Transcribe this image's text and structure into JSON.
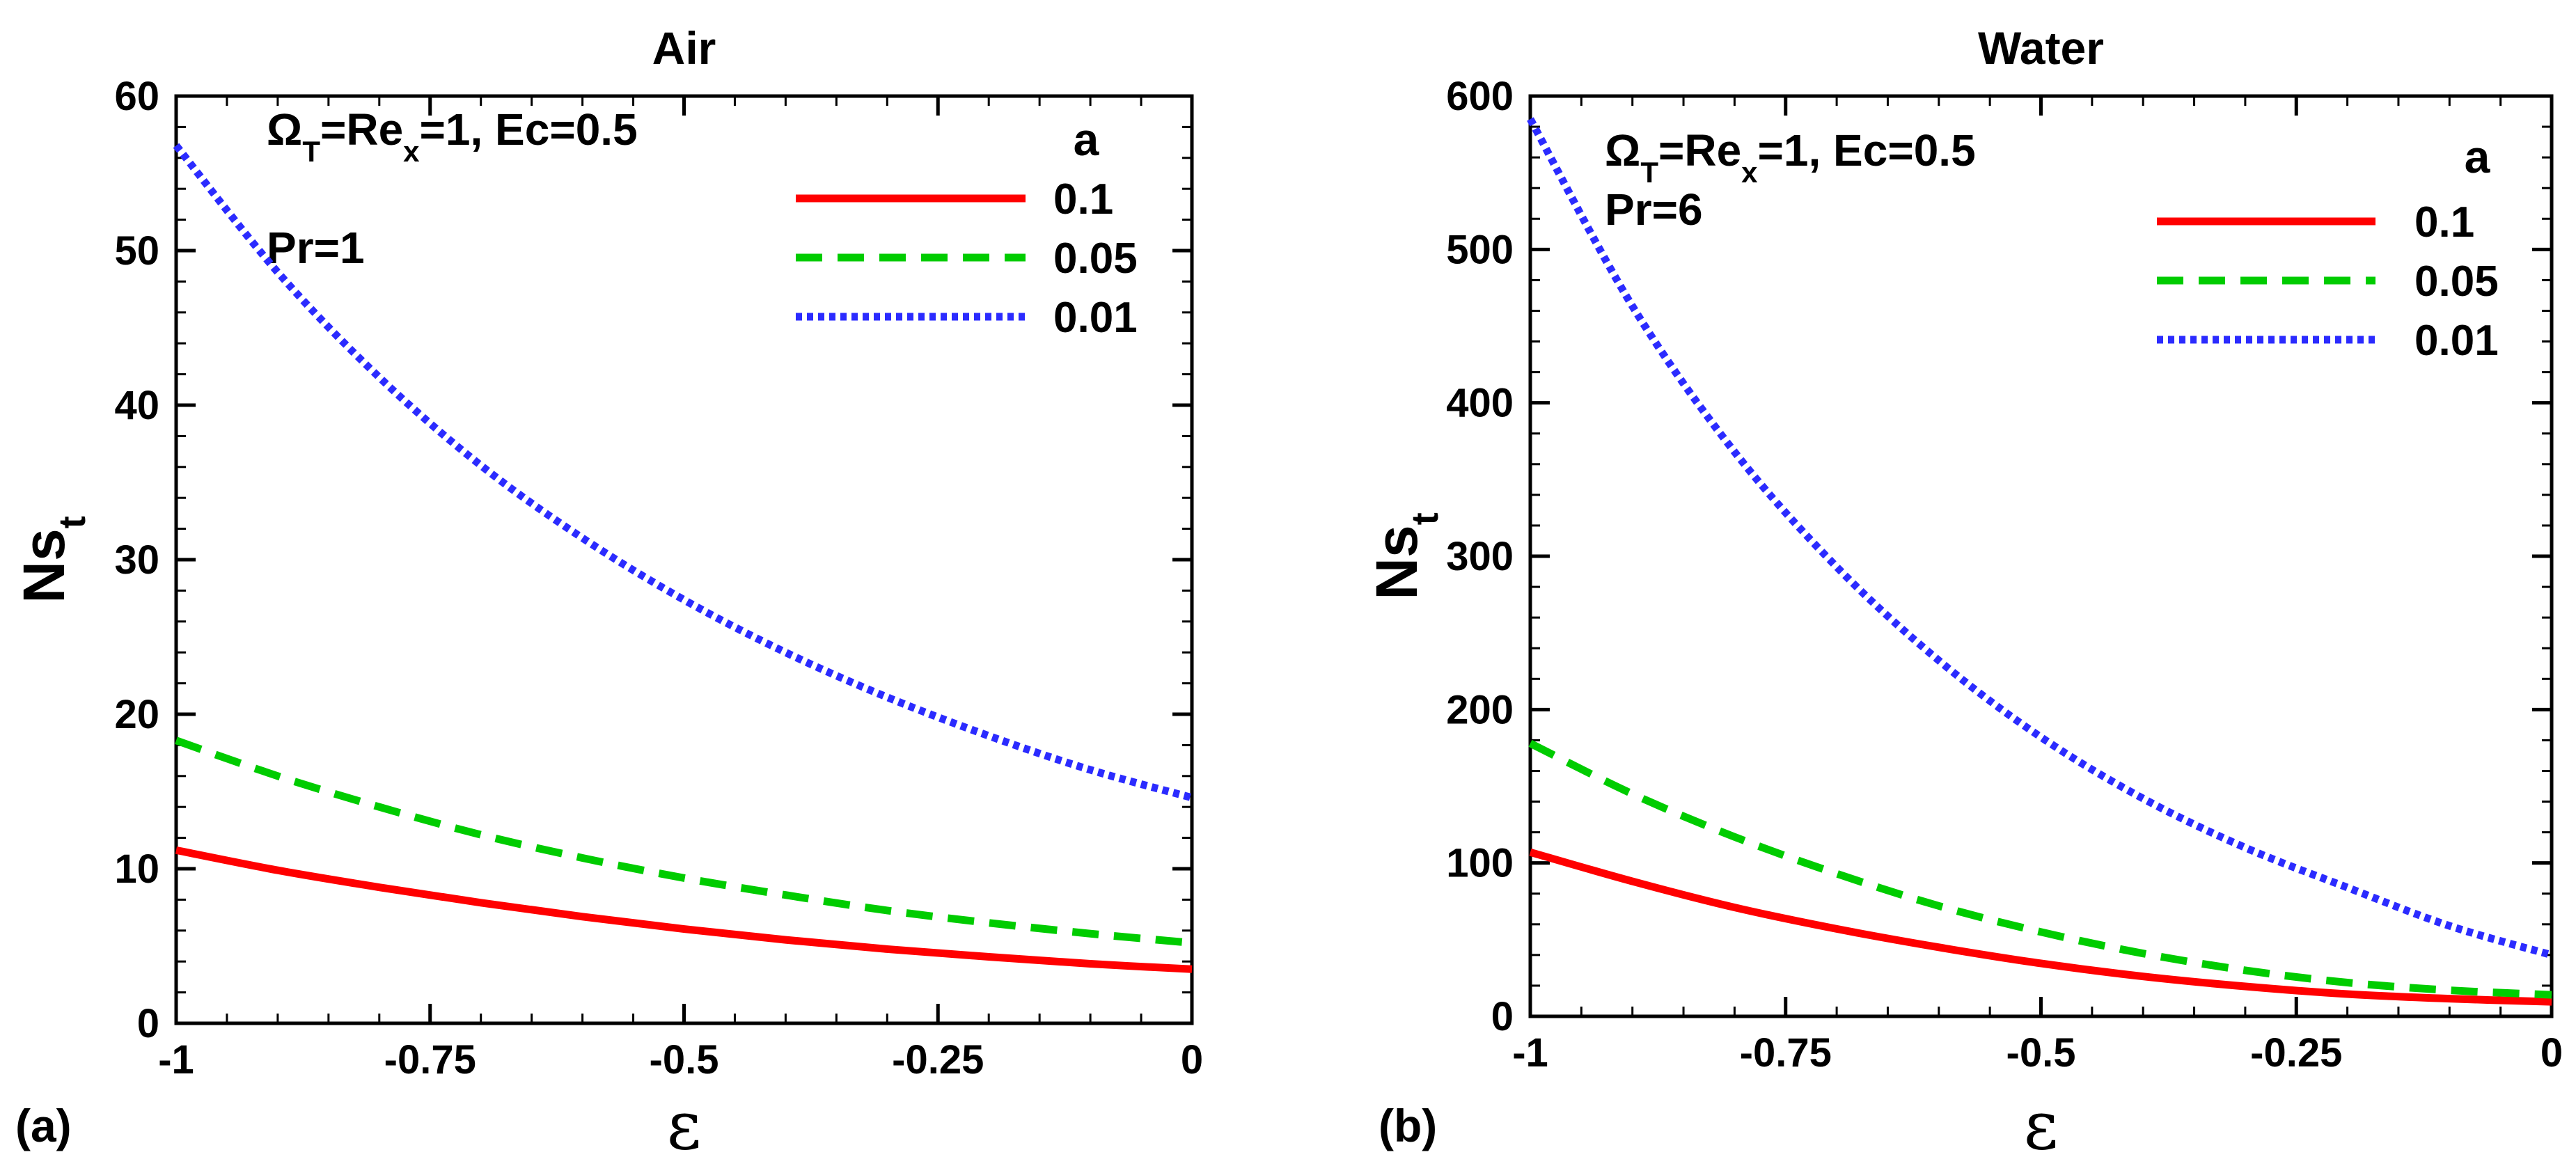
{
  "chart_data": [
    {
      "type": "line",
      "panel_label": "(a)",
      "title": "Air",
      "xlabel": "ε",
      "ylabel_main": "Ns",
      "ylabel_sub": "t",
      "xlim": [
        -1,
        0
      ],
      "ylim": [
        0,
        60
      ],
      "xticks": [
        -1,
        -0.75,
        -0.5,
        -0.25,
        0
      ],
      "xtick_labels": [
        "-1",
        "-0.75",
        "-0.5",
        "-0.25",
        "0"
      ],
      "yticks": [
        0,
        10,
        20,
        30,
        40,
        50,
        60
      ],
      "ytick_labels": [
        "0",
        "10",
        "20",
        "30",
        "40",
        "50",
        "60"
      ],
      "annotations": {
        "params": {
          "omega": "Ω",
          "omega_sub": "T",
          "eq1": "=Re",
          "re_sub": "x",
          "rest": "=1, Ec=0.5"
        },
        "pr": "Pr=1"
      },
      "legend": {
        "title": "a",
        "position": "top-right"
      },
      "x": [
        -1,
        -0.9,
        -0.8,
        -0.7,
        -0.6,
        -0.5,
        -0.4,
        -0.3,
        -0.2,
        -0.1,
        0
      ],
      "series": [
        {
          "name": "0.1",
          "color": "#ff0000",
          "style": "solid",
          "values": [
            11.2,
            9.9,
            8.8,
            7.8,
            6.9,
            6.1,
            5.4,
            4.8,
            4.3,
            3.85,
            3.5
          ]
        },
        {
          "name": "0.05",
          "color": "#00cc00",
          "style": "dashed",
          "values": [
            18.3,
            16.0,
            14.0,
            12.2,
            10.7,
            9.4,
            8.3,
            7.3,
            6.5,
            5.8,
            5.2
          ]
        },
        {
          "name": "0.01",
          "color": "#2b2bff",
          "style": "dashdot",
          "values": [
            56.8,
            48.6,
            41.8,
            36.1,
            31.4,
            27.4,
            24.0,
            21.1,
            18.6,
            16.4,
            14.6
          ]
        }
      ]
    },
    {
      "type": "line",
      "panel_label": "(b)",
      "title": "Water",
      "xlabel": "ε",
      "ylabel_main": "Ns",
      "ylabel_sub": "t",
      "xlim": [
        -1,
        0
      ],
      "ylim": [
        0,
        600
      ],
      "xticks": [
        -1,
        -0.75,
        -0.5,
        -0.25,
        0
      ],
      "xtick_labels": [
        "-1",
        "-0.75",
        "-0.5",
        "-0.25",
        "0"
      ],
      "yticks": [
        0,
        100,
        200,
        300,
        400,
        500,
        600
      ],
      "ytick_labels": [
        "0",
        "100",
        "200",
        "300",
        "400",
        "500",
        "600"
      ],
      "annotations": {
        "params": {
          "omega": "Ω",
          "omega_sub": "T",
          "eq1": "=Re",
          "re_sub": "x",
          "rest": "=1, Ec=0.5"
        },
        "pr": "Pr=6"
      },
      "legend": {
        "title": "a",
        "position": "top-right"
      },
      "x": [
        -1,
        -0.9,
        -0.8,
        -0.7,
        -0.6,
        -0.5,
        -0.4,
        -0.3,
        -0.2,
        -0.1,
        0
      ],
      "series": [
        {
          "name": "0.1",
          "color": "#ff0000",
          "style": "solid",
          "values": [
            107,
            88,
            71,
            57,
            45,
            34.5,
            26,
            19.5,
            14.5,
            11.5,
            9.5
          ]
        },
        {
          "name": "0.05",
          "color": "#00cc00",
          "style": "dashed",
          "values": [
            178,
            145,
            117,
            93,
            72,
            55,
            41,
            30,
            22,
            17,
            14
          ]
        },
        {
          "name": "0.01",
          "color": "#2b2bff",
          "style": "dashdot",
          "values": [
            585,
            463,
            368,
            293,
            232,
            182,
            142,
            110,
            84,
            59,
            40
          ]
        }
      ]
    }
  ]
}
